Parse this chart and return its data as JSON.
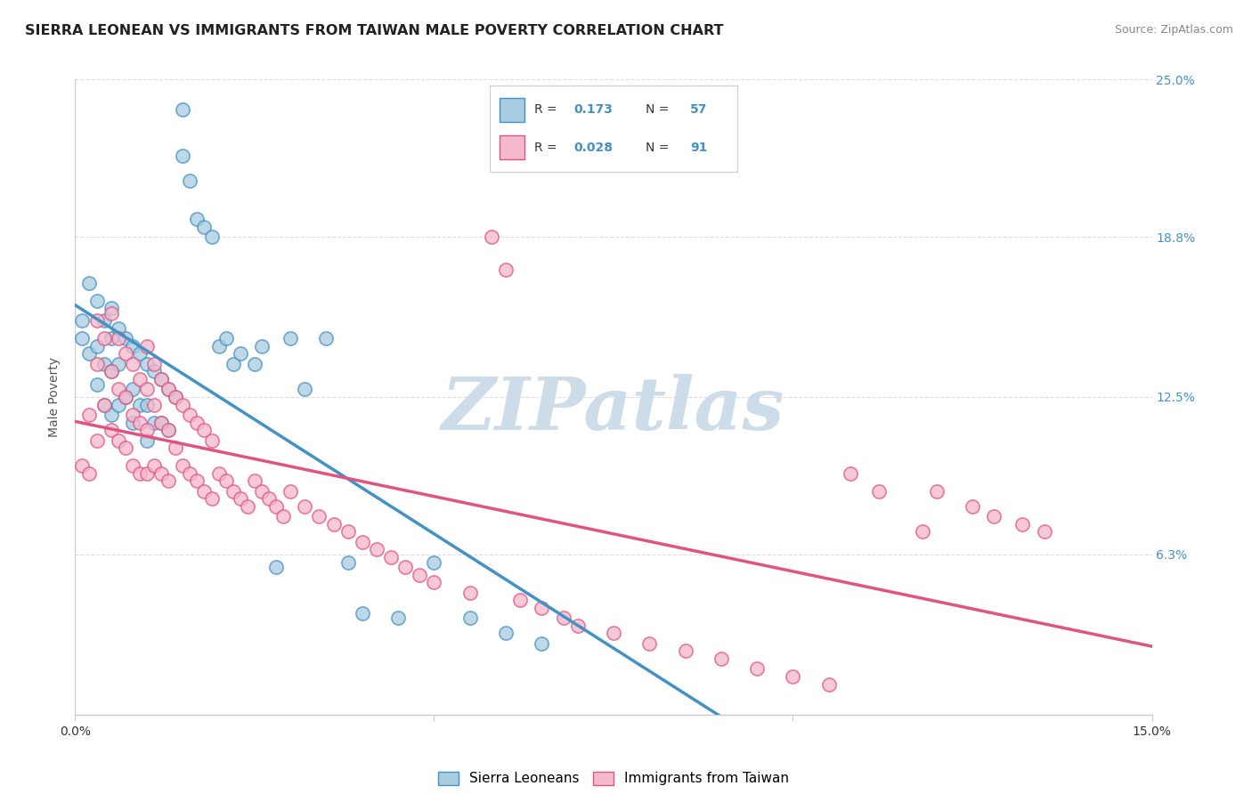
{
  "title": "SIERRA LEONEAN VS IMMIGRANTS FROM TAIWAN MALE POVERTY CORRELATION CHART",
  "source": "Source: ZipAtlas.com",
  "ylabel": "Male Poverty",
  "xmin": 0.0,
  "xmax": 0.15,
  "ymin": 0.0,
  "ymax": 0.25,
  "yticks": [
    0.0,
    0.063,
    0.125,
    0.188,
    0.25
  ],
  "ytick_labels": [
    "",
    "6.3%",
    "12.5%",
    "18.8%",
    "25.0%"
  ],
  "xticks": [
    0.0,
    0.05,
    0.1,
    0.15
  ],
  "xtick_labels": [
    "0.0%",
    "",
    "",
    "15.0%"
  ],
  "watermark": "ZIPatlas",
  "color_sl": "#a8cce0",
  "color_tw": "#f5b8cc",
  "line_color_sl": "#4292c6",
  "line_color_tw": "#e05580",
  "line_color_sl_dash": "#b0cce0",
  "sl_R": 0.173,
  "sl_N": 57,
  "tw_R": 0.028,
  "tw_N": 91,
  "sl_scatter_x": [
    0.001,
    0.001,
    0.002,
    0.002,
    0.003,
    0.003,
    0.003,
    0.004,
    0.004,
    0.004,
    0.005,
    0.005,
    0.005,
    0.005,
    0.006,
    0.006,
    0.006,
    0.007,
    0.007,
    0.008,
    0.008,
    0.008,
    0.009,
    0.009,
    0.01,
    0.01,
    0.01,
    0.011,
    0.011,
    0.012,
    0.012,
    0.013,
    0.013,
    0.014,
    0.015,
    0.015,
    0.016,
    0.017,
    0.018,
    0.019,
    0.02,
    0.021,
    0.022,
    0.023,
    0.025,
    0.026,
    0.028,
    0.03,
    0.032,
    0.035,
    0.038,
    0.04,
    0.045,
    0.05,
    0.055,
    0.06,
    0.065
  ],
  "sl_scatter_y": [
    0.155,
    0.148,
    0.17,
    0.142,
    0.163,
    0.145,
    0.13,
    0.155,
    0.138,
    0.122,
    0.16,
    0.148,
    0.135,
    0.118,
    0.152,
    0.138,
    0.122,
    0.148,
    0.125,
    0.145,
    0.128,
    0.115,
    0.142,
    0.122,
    0.138,
    0.122,
    0.108,
    0.135,
    0.115,
    0.132,
    0.115,
    0.128,
    0.112,
    0.125,
    0.238,
    0.22,
    0.21,
    0.195,
    0.192,
    0.188,
    0.145,
    0.148,
    0.138,
    0.142,
    0.138,
    0.145,
    0.058,
    0.148,
    0.128,
    0.148,
    0.06,
    0.04,
    0.038,
    0.06,
    0.038,
    0.032,
    0.028
  ],
  "tw_scatter_x": [
    0.001,
    0.002,
    0.002,
    0.003,
    0.003,
    0.003,
    0.004,
    0.004,
    0.005,
    0.005,
    0.005,
    0.006,
    0.006,
    0.006,
    0.007,
    0.007,
    0.007,
    0.008,
    0.008,
    0.008,
    0.009,
    0.009,
    0.009,
    0.01,
    0.01,
    0.01,
    0.01,
    0.011,
    0.011,
    0.011,
    0.012,
    0.012,
    0.012,
    0.013,
    0.013,
    0.013,
    0.014,
    0.014,
    0.015,
    0.015,
    0.016,
    0.016,
    0.017,
    0.017,
    0.018,
    0.018,
    0.019,
    0.019,
    0.02,
    0.021,
    0.022,
    0.023,
    0.024,
    0.025,
    0.026,
    0.027,
    0.028,
    0.029,
    0.03,
    0.032,
    0.034,
    0.036,
    0.038,
    0.04,
    0.042,
    0.044,
    0.046,
    0.048,
    0.05,
    0.055,
    0.058,
    0.06,
    0.062,
    0.065,
    0.068,
    0.07,
    0.075,
    0.08,
    0.085,
    0.09,
    0.095,
    0.1,
    0.105,
    0.108,
    0.112,
    0.118,
    0.12,
    0.125,
    0.128,
    0.132,
    0.135
  ],
  "tw_scatter_y": [
    0.098,
    0.118,
    0.095,
    0.155,
    0.138,
    0.108,
    0.148,
    0.122,
    0.158,
    0.135,
    0.112,
    0.148,
    0.128,
    0.108,
    0.142,
    0.125,
    0.105,
    0.138,
    0.118,
    0.098,
    0.132,
    0.115,
    0.095,
    0.145,
    0.128,
    0.112,
    0.095,
    0.138,
    0.122,
    0.098,
    0.132,
    0.115,
    0.095,
    0.128,
    0.112,
    0.092,
    0.125,
    0.105,
    0.122,
    0.098,
    0.118,
    0.095,
    0.115,
    0.092,
    0.112,
    0.088,
    0.108,
    0.085,
    0.095,
    0.092,
    0.088,
    0.085,
    0.082,
    0.092,
    0.088,
    0.085,
    0.082,
    0.078,
    0.088,
    0.082,
    0.078,
    0.075,
    0.072,
    0.068,
    0.065,
    0.062,
    0.058,
    0.055,
    0.052,
    0.048,
    0.188,
    0.175,
    0.045,
    0.042,
    0.038,
    0.035,
    0.032,
    0.028,
    0.025,
    0.022,
    0.018,
    0.015,
    0.012,
    0.095,
    0.088,
    0.072,
    0.088,
    0.082,
    0.078,
    0.075,
    0.072
  ],
  "background_color": "#ffffff",
  "grid_color": "#dddddd",
  "title_fontsize": 11.5,
  "axis_label_fontsize": 10,
  "tick_fontsize": 10,
  "watermark_color": "#ccdce8",
  "watermark_fontsize": 60
}
